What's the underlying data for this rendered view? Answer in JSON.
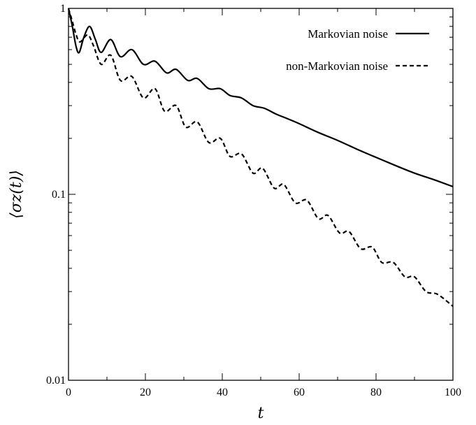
{
  "chart_data": {
    "type": "line",
    "xlabel": "t",
    "ylabel": "⟨σz(t)⟩",
    "xlim": [
      0,
      100
    ],
    "ylim": [
      0.01,
      1
    ],
    "yscale": "log",
    "grid": false,
    "legend_position": "top-right",
    "x_ticks": [
      0,
      20,
      40,
      60,
      80,
      100
    ],
    "x_tick_labels": [
      "0",
      "20",
      "40",
      "60",
      "80",
      "100"
    ],
    "y_ticks": [
      0.01,
      0.1,
      1
    ],
    "y_tick_labels": [
      "0.01",
      "0.1",
      "1"
    ],
    "series": [
      {
        "name": "Markovian noise",
        "style": "solid",
        "color": "#000000",
        "x": [
          0,
          1,
          2,
          2.8,
          4,
          5.5,
          7,
          8.5,
          11,
          13.5,
          16.5,
          19.5,
          22.5,
          25.5,
          28,
          31,
          33.5,
          36.5,
          39.5,
          42,
          45,
          48,
          51,
          54,
          57,
          60,
          65,
          70,
          75,
          80,
          85,
          90,
          95,
          100
        ],
        "y": [
          1.0,
          0.8,
          0.62,
          0.58,
          0.7,
          0.8,
          0.68,
          0.58,
          0.68,
          0.55,
          0.6,
          0.5,
          0.52,
          0.45,
          0.47,
          0.41,
          0.42,
          0.37,
          0.37,
          0.34,
          0.33,
          0.3,
          0.29,
          0.27,
          0.255,
          0.24,
          0.215,
          0.195,
          0.175,
          0.158,
          0.143,
          0.13,
          0.12,
          0.11
        ]
      },
      {
        "name": "non-Markovian noise",
        "style": "dashed",
        "color": "#000000",
        "x": [
          0,
          1,
          2,
          3,
          5,
          6.5,
          8.5,
          11,
          13.5,
          16.5,
          19.5,
          22.5,
          25,
          28,
          30.5,
          33.5,
          36.5,
          39.5,
          42,
          45,
          48,
          50.5,
          53.5,
          56,
          59,
          62,
          65,
          67.5,
          70.5,
          73,
          76,
          79,
          81.5,
          84.5,
          87.5,
          90,
          93,
          96,
          100
        ],
        "y": [
          1.0,
          0.85,
          0.72,
          0.66,
          0.72,
          0.63,
          0.5,
          0.56,
          0.41,
          0.43,
          0.33,
          0.37,
          0.28,
          0.3,
          0.23,
          0.245,
          0.19,
          0.2,
          0.16,
          0.165,
          0.13,
          0.138,
          0.108,
          0.113,
          0.09,
          0.093,
          0.074,
          0.077,
          0.062,
          0.063,
          0.051,
          0.052,
          0.043,
          0.043,
          0.036,
          0.036,
          0.03,
          0.029,
          0.025
        ]
      }
    ]
  }
}
